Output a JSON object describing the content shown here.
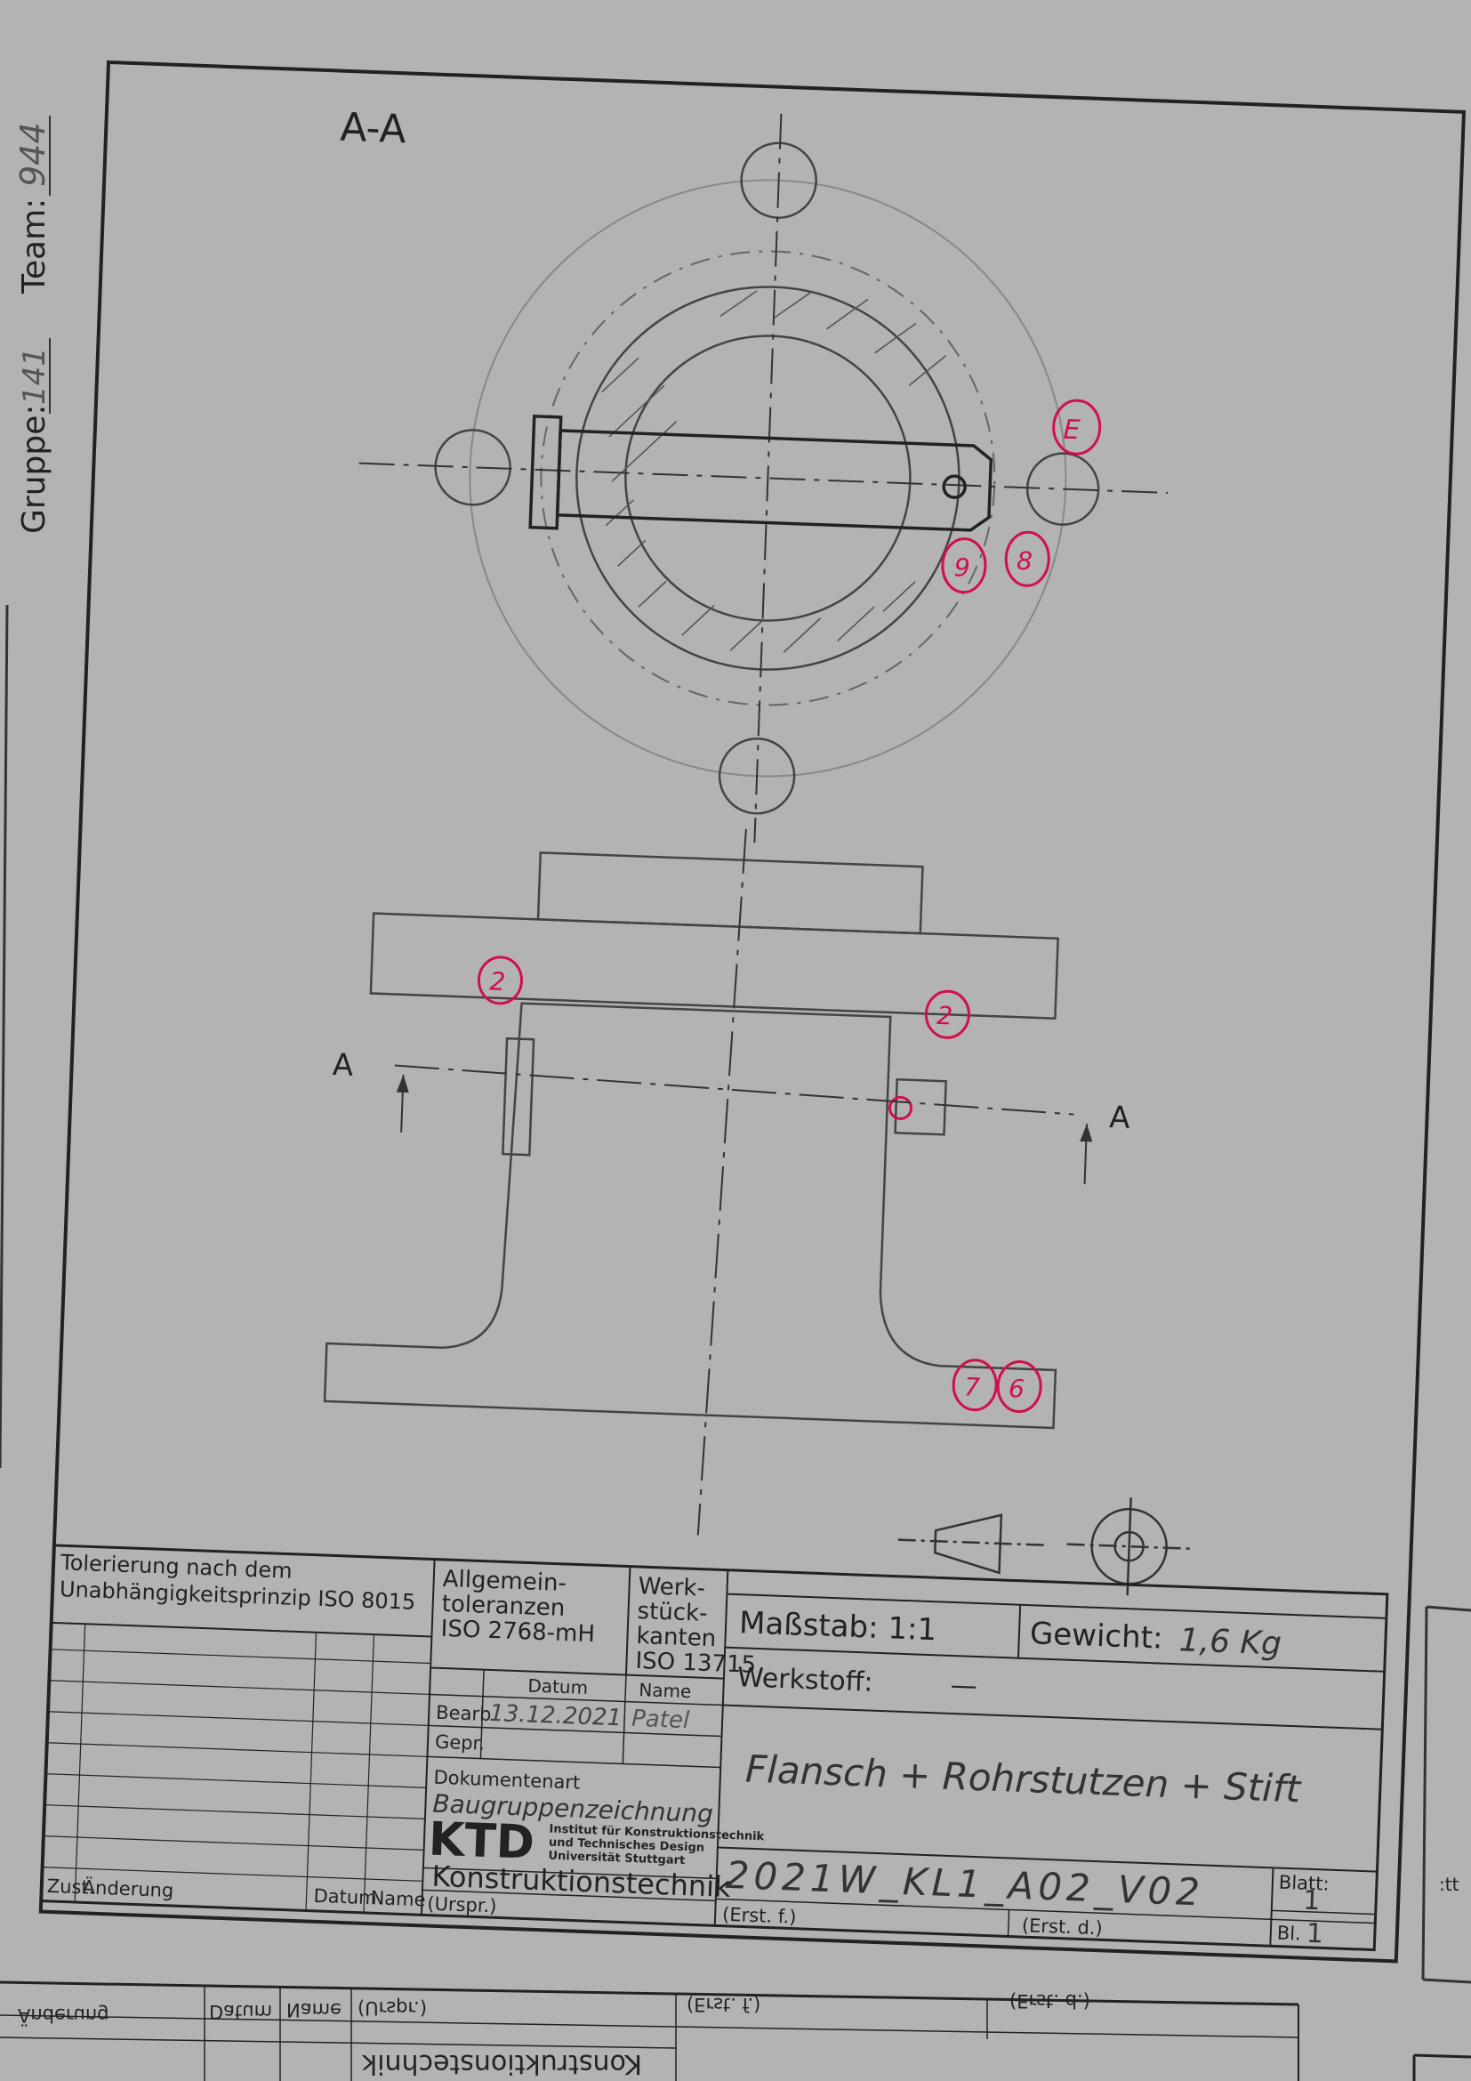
{
  "side_margin": {
    "gruppe_label": "Gruppe:",
    "gruppe_value": "141",
    "team_label": "Team:",
    "team_value": "944"
  },
  "drawing": {
    "section_label": "A-A",
    "cut_label_left": "A",
    "cut_label_right": "A",
    "markers": [
      "E",
      "9",
      "8",
      "2",
      "2",
      "7",
      "6"
    ]
  },
  "title_block": {
    "toleranz_text_1": "Tolerierung nach dem",
    "toleranz_text_2": "Unabhängigkeitsprinzip ISO 8015",
    "allgemein_1": "Allgemein-",
    "allgemein_2": "toleranzen",
    "allgemein_3": "ISO 2768-mH",
    "werk_1": "Werk-",
    "werk_2": "stück-",
    "werk_3": "kanten",
    "werk_4": "ISO 13715",
    "massstab": "Maßstab: 1:1",
    "gewicht_label": "Gewicht:",
    "gewicht_value": "1,6 Kg",
    "werkstoff_label": "Werkstoff:",
    "werkstoff_value": "—",
    "datum_header": "Datum",
    "name_header": "Name",
    "bearb_label": "Bearb",
    "bearb_datum": "13.12.2021",
    "bearb_name": "Patel",
    "gepr_label": "Gepr.",
    "dokumentenart_label": "Dokumentenart",
    "dokumentenart_value": "Baugruppenzeichnung",
    "logo_text": "KTD",
    "institute_1": "Institut für Konstruktionstechnik",
    "institute_2": "und Technisches Design",
    "institute_3": "Universität Stuttgart",
    "konstruktionstechnik": "Konstruktionstechnik",
    "benennung": "Flansch + Rohrstutzen + Stift",
    "zeichnungsnummer": "2021W_KL1_A02_V02",
    "blatt_label": "Blatt:",
    "blatt_value": "1",
    "bl_label": "Bl.",
    "bl_value": "1",
    "aenderung_label": "Änderung",
    "datum_label": "Datum",
    "name_label": "Name",
    "urspr_label": "(Urspr.)",
    "erst_f_label": "(Erst. f.)",
    "erst_d_label": "(Erst. d.)",
    "zust_label": "Zust."
  },
  "mirror_strip": {
    "aenderung": "Änderung",
    "datum": "Datum",
    "name": "Name",
    "urspr": "(Urspr.)",
    "erst_f": "(Erst. f.)",
    "erst_d": "(Erst. d.)",
    "konstruktionstechnik": "Konstruktionstechnik",
    "blatt_frag": ":tt"
  }
}
